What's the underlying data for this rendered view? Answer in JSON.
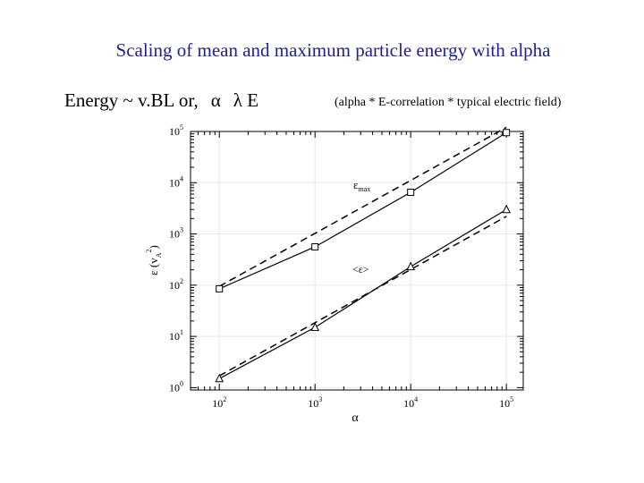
{
  "slide": {
    "title": "Scaling of mean and maximum particle energy with alpha",
    "formula_left": "Energy ~ v.BL",
    "formula_or": "or,",
    "formula_alpha": "α",
    "formula_lambda": "λ",
    "formula_e": "E",
    "note": "(alpha * E-correlation * typical electric field)"
  },
  "colors": {
    "title": "#1f1f8f",
    "text": "#000000"
  },
  "chart_data": {
    "type": "line",
    "xscale": "log",
    "yscale": "log",
    "xlabel": "α",
    "ylabel_base": "ε (v",
    "ylabel_sub": "A",
    "ylabel_sup": "2",
    "ylabel_close": ")",
    "xlim": [
      50,
      150000
    ],
    "ylim": [
      0.9,
      100000
    ],
    "xticks": [
      100,
      1000,
      10000,
      100000
    ],
    "xtick_labels": [
      {
        "base": "10",
        "exp": "2"
      },
      {
        "base": "10",
        "exp": "3"
      },
      {
        "base": "10",
        "exp": "4"
      },
      {
        "base": "10",
        "exp": "5"
      }
    ],
    "yticks": [
      1,
      10,
      100,
      1000,
      10000,
      100000
    ],
    "ytick_labels": [
      {
        "base": "10",
        "exp": "0"
      },
      {
        "base": "10",
        "exp": "1"
      },
      {
        "base": "10",
        "exp": "2"
      },
      {
        "base": "10",
        "exp": "3"
      },
      {
        "base": "10",
        "exp": "4"
      },
      {
        "base": "10",
        "exp": "5"
      }
    ],
    "series": [
      {
        "name": "ε_max",
        "label_main": "ε",
        "label_sub": "max",
        "marker": "square",
        "x": [
          100,
          1000,
          10000,
          100000
        ],
        "y": [
          85,
          560,
          6500,
          95000
        ]
      },
      {
        "name": "<ε>",
        "label_main": "<ε>",
        "marker": "triangle",
        "x": [
          100,
          1000,
          10000,
          100000
        ],
        "y": [
          1.5,
          15,
          230,
          3000
        ]
      }
    ],
    "fits": [
      {
        "x": [
          100,
          100000
        ],
        "y": [
          95,
          120000
        ]
      },
      {
        "x": [
          100,
          100000
        ],
        "y": [
          1.7,
          2200
        ]
      }
    ]
  }
}
